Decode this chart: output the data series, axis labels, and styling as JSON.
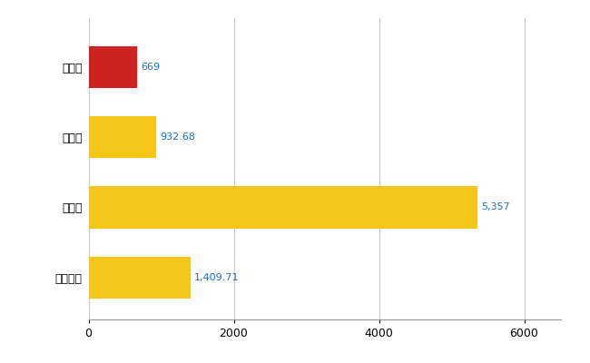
{
  "categories": [
    "潟上市",
    "県平均",
    "県最大",
    "全国平均"
  ],
  "values": [
    669,
    932.68,
    5357,
    1409.71
  ],
  "labels": [
    "669",
    "932.68",
    "5,357",
    "1,409.71"
  ],
  "bar_colors": [
    "#cc2222",
    "#f5c518",
    "#f5c518",
    "#f5c518"
  ],
  "label_color": "#1a6fc4",
  "xlim": [
    0,
    6500
  ],
  "xticks": [
    0,
    2000,
    4000,
    6000
  ],
  "background_color": "#ffffff",
  "grid_color": "#c8c8c8",
  "bar_height": 0.6,
  "label_fontsize": 8,
  "tick_fontsize": 9
}
